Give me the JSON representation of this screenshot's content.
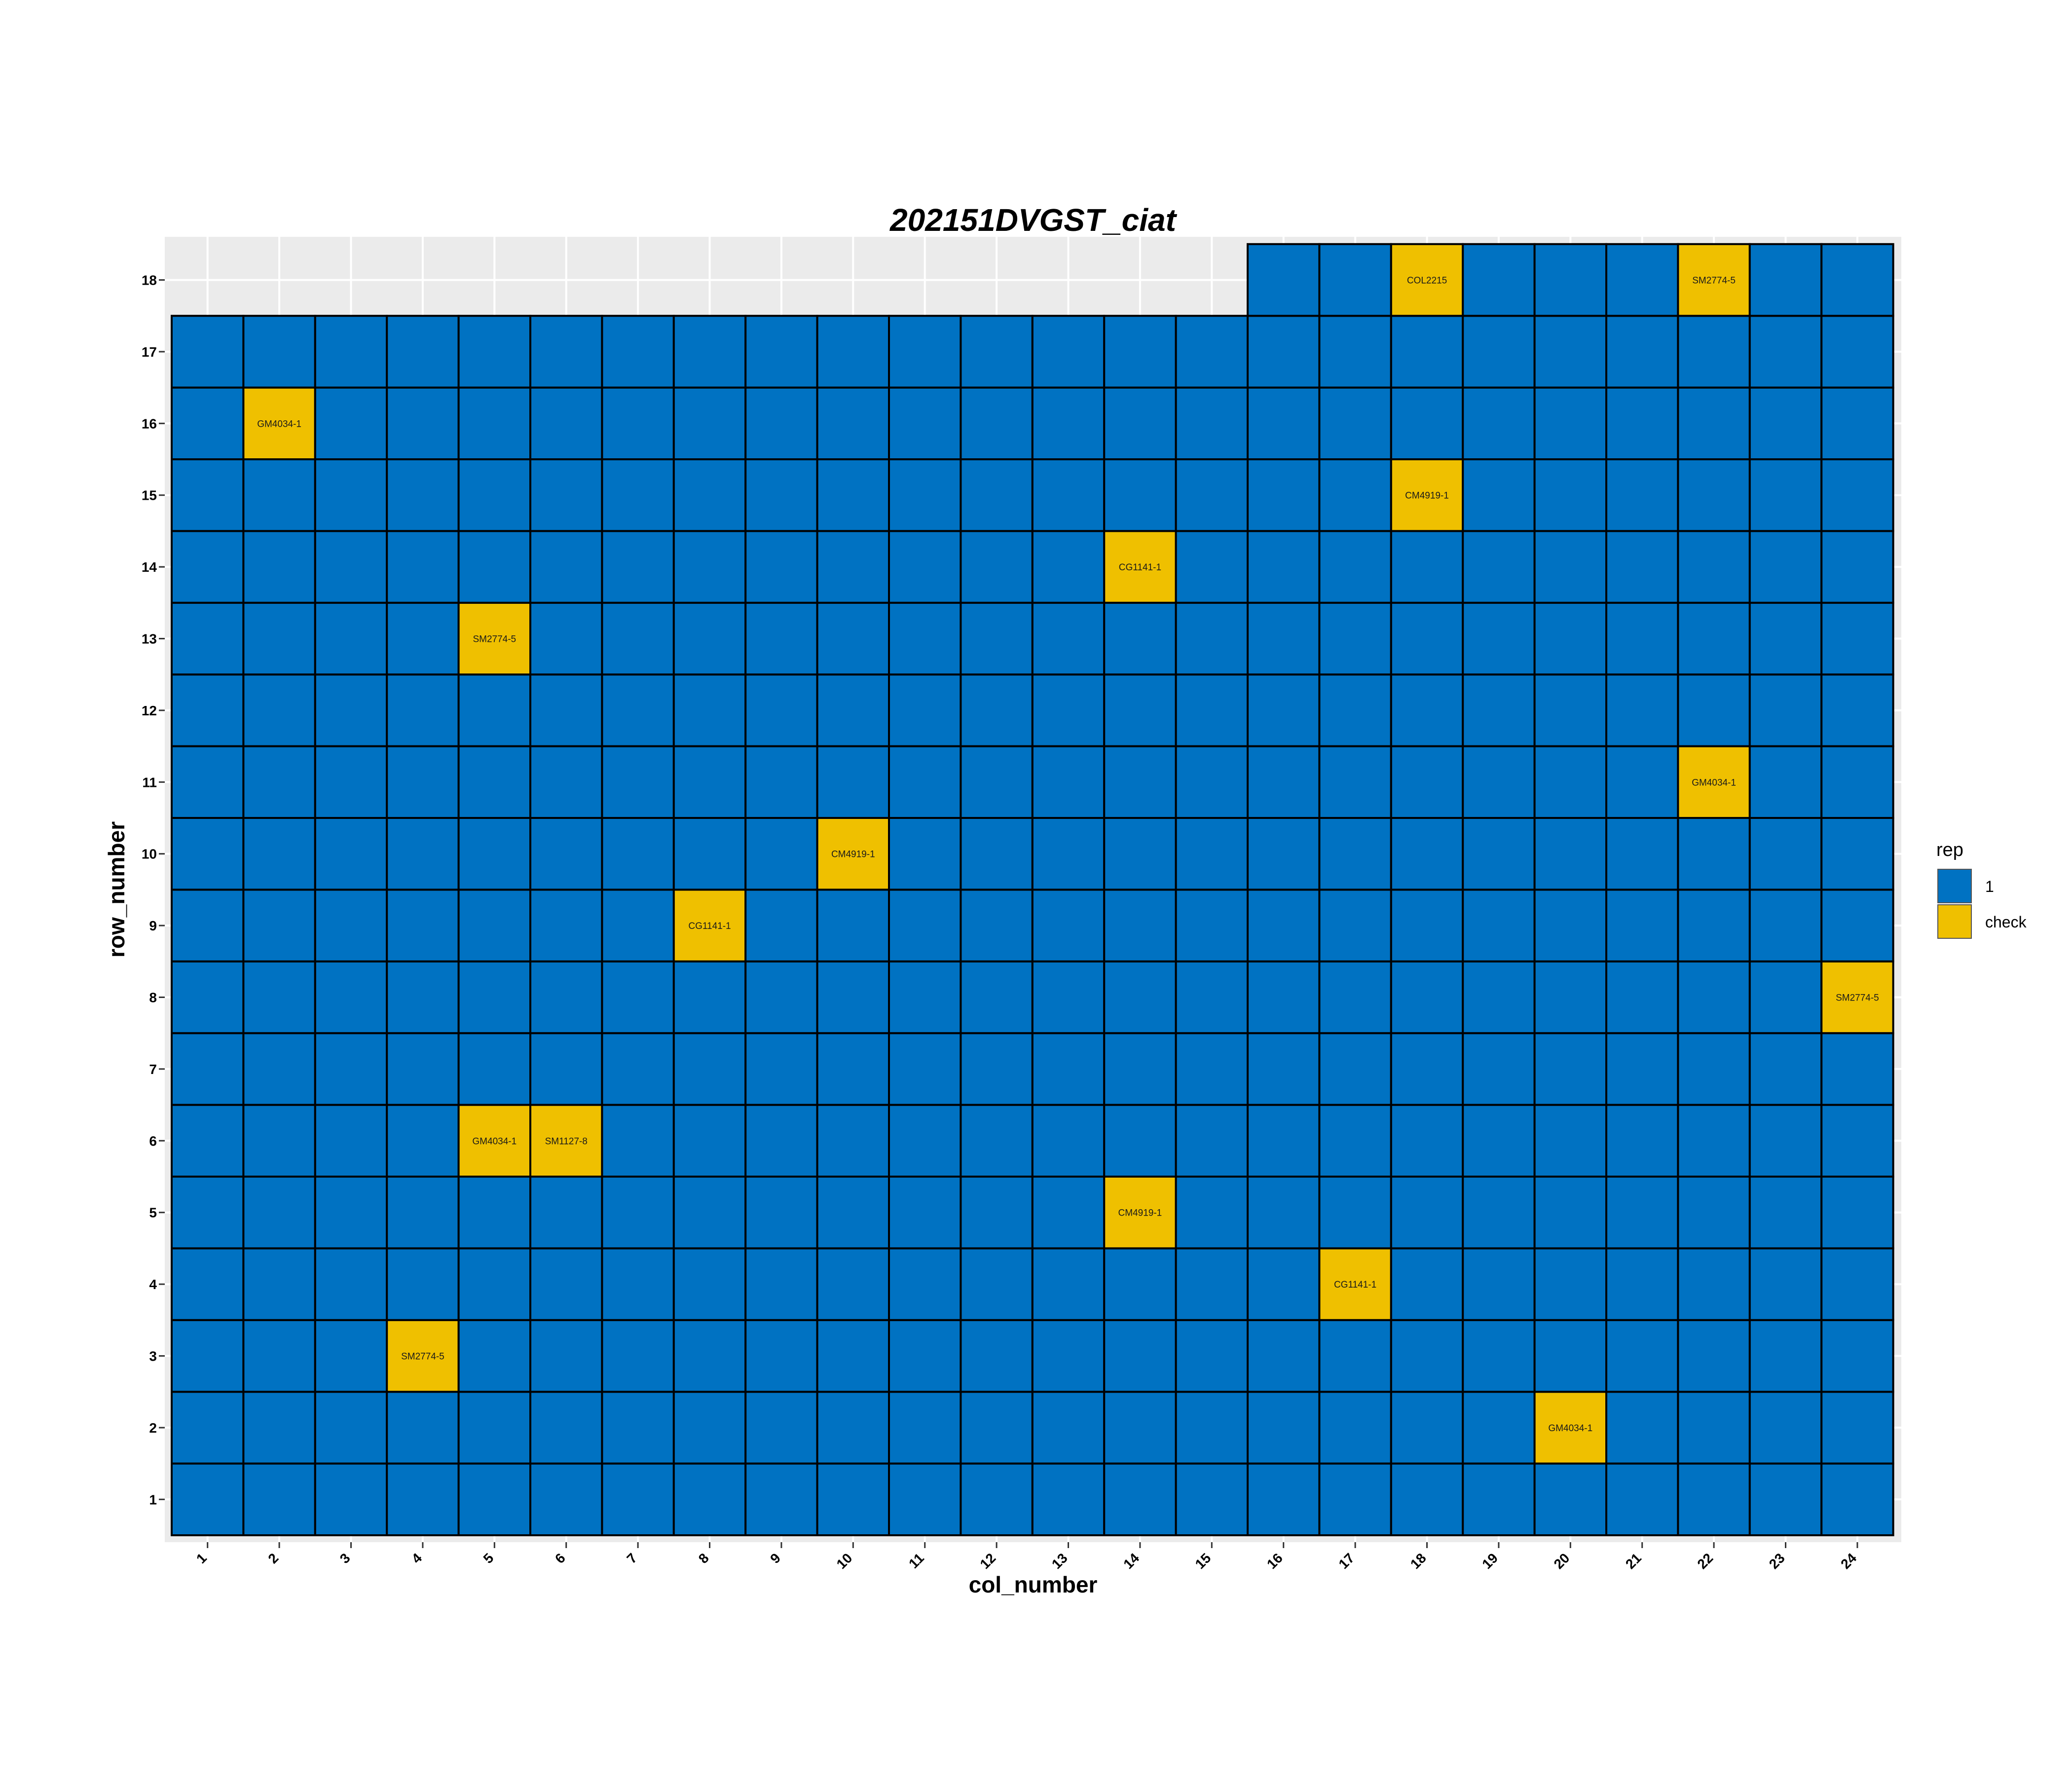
{
  "chart_data": {
    "type": "heatmap",
    "title": "202151DVGST_ciat",
    "xlabel": "col_number",
    "ylabel": "row_number",
    "x_ticks": [
      "1",
      "2",
      "3",
      "4",
      "5",
      "6",
      "7",
      "8",
      "9",
      "10",
      "11",
      "12",
      "13",
      "14",
      "15",
      "16",
      "17",
      "18",
      "19",
      "20",
      "21",
      "22",
      "23",
      "24"
    ],
    "y_ticks": [
      "1",
      "2",
      "3",
      "4",
      "5",
      "6",
      "7",
      "8",
      "9",
      "10",
      "11",
      "12",
      "13",
      "14",
      "15",
      "16",
      "17",
      "18"
    ],
    "xlim": [
      1,
      24
    ],
    "ylim": [
      1,
      18
    ],
    "grid": true,
    "fill_legend": {
      "title": "rep",
      "position": "right",
      "entries": [
        {
          "label": "1",
          "color": "#0072C2"
        },
        {
          "label": "check",
          "color": "#EFC000"
        }
      ]
    },
    "layout": {
      "full_rows": [
        1,
        17
      ],
      "partial_rows": [
        {
          "row": 18,
          "cols": [
            16,
            24
          ]
        }
      ]
    },
    "default_rep": "1",
    "checks": [
      {
        "col": 18,
        "row": 18,
        "label": "COL2215"
      },
      {
        "col": 22,
        "row": 18,
        "label": "SM2774-5"
      },
      {
        "col": 2,
        "row": 16,
        "label": "GM4034-1"
      },
      {
        "col": 18,
        "row": 15,
        "label": "CM4919-1"
      },
      {
        "col": 14,
        "row": 14,
        "label": "CG1141-1"
      },
      {
        "col": 5,
        "row": 13,
        "label": "SM2774-5"
      },
      {
        "col": 22,
        "row": 11,
        "label": "GM4034-1"
      },
      {
        "col": 10,
        "row": 10,
        "label": "CM4919-1"
      },
      {
        "col": 8,
        "row": 9,
        "label": "CG1141-1"
      },
      {
        "col": 24,
        "row": 8,
        "label": "SM2774-5"
      },
      {
        "col": 5,
        "row": 6,
        "label": "GM4034-1"
      },
      {
        "col": 6,
        "row": 6,
        "label": "SM1127-8"
      },
      {
        "col": 14,
        "row": 5,
        "label": "CM4919-1"
      },
      {
        "col": 17,
        "row": 4,
        "label": "CG1141-1"
      },
      {
        "col": 4,
        "row": 3,
        "label": "SM2774-5"
      },
      {
        "col": 20,
        "row": 2,
        "label": "GM4034-1"
      }
    ]
  },
  "colors": {
    "panel_background": "#EBEBEB",
    "grid": "#FFFFFF",
    "cell_border": "#000000"
  }
}
